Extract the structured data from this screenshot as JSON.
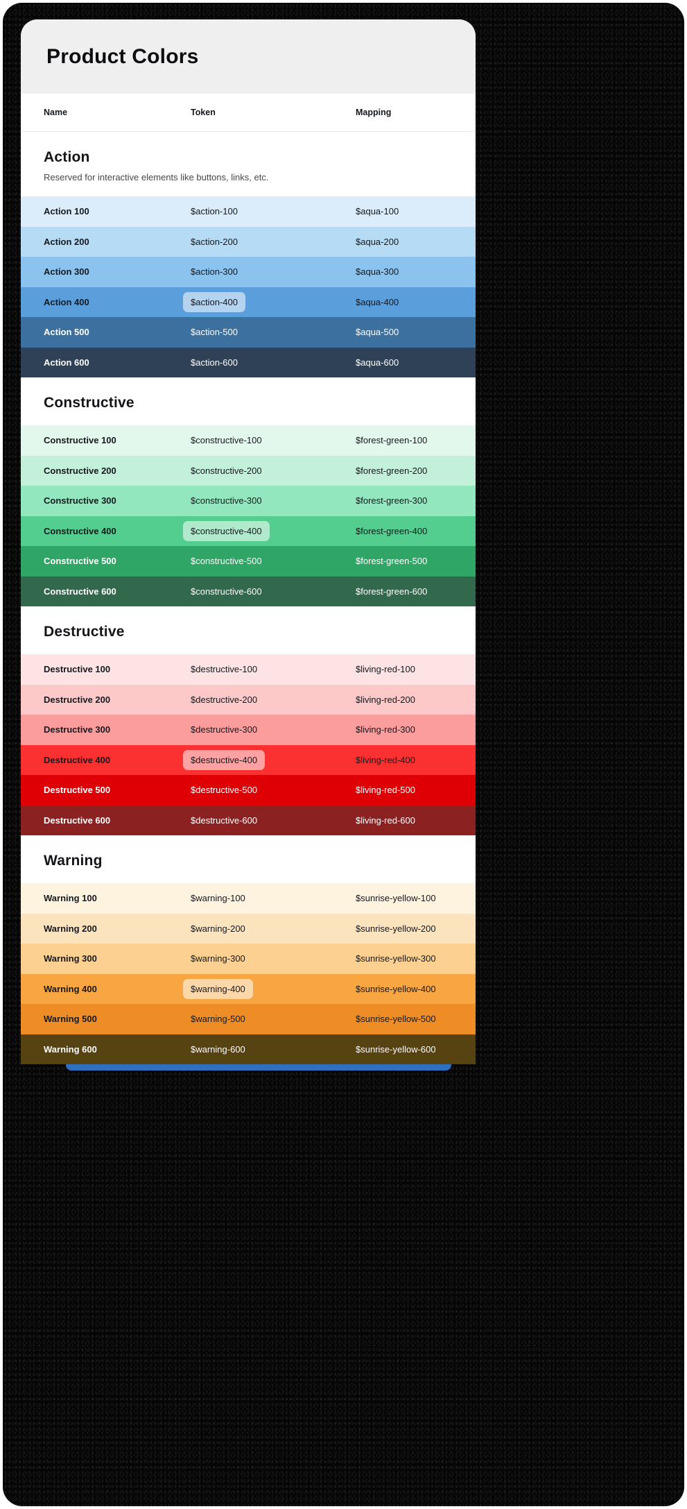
{
  "page": {
    "title": "Product Colors"
  },
  "table": {
    "headers": [
      "Name",
      "Token",
      "Mapping"
    ],
    "chip_bg": "rgba(255,255,255,0.55)",
    "chip_fg": "#15181E",
    "sections": [
      {
        "title": "Action",
        "description": "Reserved for interactive elements like buttons, links, etc.",
        "rows": [
          {
            "name": "Action 100",
            "token": "$action-100",
            "mapping": "$aqua-100",
            "bg": "#DBEDFB",
            "fg": "#15181E",
            "chip": false
          },
          {
            "name": "Action 200",
            "token": "$action-200",
            "mapping": "$aqua-200",
            "bg": "#B5DBF5",
            "fg": "#15181E",
            "chip": false
          },
          {
            "name": "Action 300",
            "token": "$action-300",
            "mapping": "$aqua-300",
            "bg": "#8BC3EE",
            "fg": "#15181E",
            "chip": false
          },
          {
            "name": "Action 400",
            "token": "$action-400",
            "mapping": "$aqua-400",
            "bg": "#5B9EDC",
            "fg": "#15181E",
            "chip": true
          },
          {
            "name": "Action 500",
            "token": "$action-500",
            "mapping": "$aqua-500",
            "bg": "#3C709F",
            "fg": "#FFFFFF",
            "chip": false
          },
          {
            "name": "Action 600",
            "token": "$action-600",
            "mapping": "$aqua-600",
            "bg": "#2E4156",
            "fg": "#FFFFFF",
            "chip": false
          }
        ]
      },
      {
        "title": "Constructive",
        "description": "",
        "rows": [
          {
            "name": "Constructive 100",
            "token": "$constructive-100",
            "mapping": "$forest-green-100",
            "bg": "#E3F8ED",
            "fg": "#15181E",
            "chip": false
          },
          {
            "name": "Constructive 200",
            "token": "$constructive-200",
            "mapping": "$forest-green-200",
            "bg": "#C2F0D8",
            "fg": "#15181E",
            "chip": false
          },
          {
            "name": "Constructive 300",
            "token": "$constructive-300",
            "mapping": "$forest-green-300",
            "bg": "#92E7BE",
            "fg": "#15181E",
            "chip": false
          },
          {
            "name": "Constructive 400",
            "token": "$constructive-400",
            "mapping": "$forest-green-400",
            "bg": "#53CE8E",
            "fg": "#15181E",
            "chip": true
          },
          {
            "name": "Constructive 500",
            "token": "$constructive-500",
            "mapping": "$forest-green-500",
            "bg": "#2FA665",
            "fg": "#FFFFFF",
            "chip": false
          },
          {
            "name": "Constructive 600",
            "token": "$constructive-600",
            "mapping": "$forest-green-600",
            "bg": "#32684B",
            "fg": "#FFFFFF",
            "chip": false
          }
        ]
      },
      {
        "title": "Destructive",
        "description": "",
        "rows": [
          {
            "name": "Destructive 100",
            "token": "$destructive-100",
            "mapping": "$living-red-100",
            "bg": "#FDE3E3",
            "fg": "#15181E",
            "chip": false
          },
          {
            "name": "Destructive 200",
            "token": "$destructive-200",
            "mapping": "$living-red-200",
            "bg": "#FCC8C8",
            "fg": "#15181E",
            "chip": false
          },
          {
            "name": "Destructive 300",
            "token": "$destructive-300",
            "mapping": "$living-red-300",
            "bg": "#FB9D9D",
            "fg": "#15181E",
            "chip": false
          },
          {
            "name": "Destructive 400",
            "token": "$destructive-400",
            "mapping": "$living-red-400",
            "bg": "#FB3131",
            "fg": "#15181E",
            "chip": true
          },
          {
            "name": "Destructive 500",
            "token": "$destructive-500",
            "mapping": "$living-red-500",
            "bg": "#DF0005",
            "fg": "#FFFFFF",
            "chip": false
          },
          {
            "name": "Destructive 600",
            "token": "$destructive-600",
            "mapping": "$living-red-600",
            "bg": "#8C2122",
            "fg": "#FFFFFF",
            "chip": false
          }
        ]
      },
      {
        "title": "Warning",
        "description": "",
        "rows": [
          {
            "name": "Warning 100",
            "token": "$warning-100",
            "mapping": "$sunrise-yellow-100",
            "bg": "#FDF3DE",
            "fg": "#15181E",
            "chip": false
          },
          {
            "name": "Warning 200",
            "token": "$warning-200",
            "mapping": "$sunrise-yellow-200",
            "bg": "#FBE3BD",
            "fg": "#15181E",
            "chip": false
          },
          {
            "name": "Warning 300",
            "token": "$warning-300",
            "mapping": "$sunrise-yellow-300",
            "bg": "#FBD091",
            "fg": "#15181E",
            "chip": false
          },
          {
            "name": "Warning 400",
            "token": "$warning-400",
            "mapping": "$sunrise-yellow-400",
            "bg": "#F7A642",
            "fg": "#15181E",
            "chip": true
          },
          {
            "name": "Warning 500",
            "token": "$warning-500",
            "mapping": "$sunrise-yellow-500",
            "bg": "#EE8D26",
            "fg": "#15181E",
            "chip": false
          },
          {
            "name": "Warning 600",
            "token": "$warning-600",
            "mapping": "$sunrise-yellow-600",
            "bg": "#574212",
            "fg": "#FFFFFF",
            "chip": false
          }
        ]
      }
    ]
  },
  "footer": {
    "strip_color": "#2E6FBE"
  }
}
